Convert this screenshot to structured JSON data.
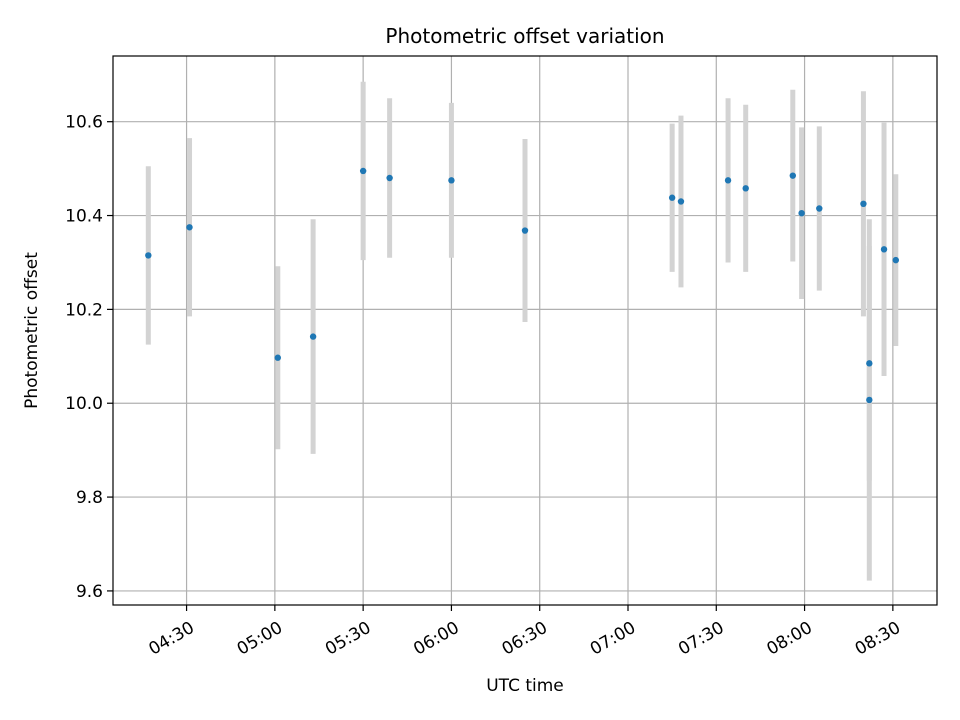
{
  "chart_data": {
    "type": "scatter",
    "title": "Photometric offset variation",
    "xlabel": "UTC time",
    "ylabel": "Photometric offset",
    "x_unit": "HH:MM",
    "xlim": [
      "04:05",
      "08:45"
    ],
    "ylim": [
      9.57,
      10.74
    ],
    "x_ticks": [
      "04:30",
      "05:00",
      "05:30",
      "06:00",
      "06:30",
      "07:00",
      "07:30",
      "08:00",
      "08:30"
    ],
    "y_ticks": [
      "9.6",
      "9.8",
      "10.0",
      "10.2",
      "10.4",
      "10.6"
    ],
    "y_tick_values": [
      9.6,
      9.8,
      10.0,
      10.2,
      10.4,
      10.6
    ],
    "grid": true,
    "series": [
      {
        "points": [
          {
            "x": "04:17",
            "y": 10.315,
            "err": 0.19
          },
          {
            "x": "04:31",
            "y": 10.375,
            "err": 0.19
          },
          {
            "x": "05:01",
            "y": 10.097,
            "err": 0.195
          },
          {
            "x": "05:13",
            "y": 10.142,
            "err": 0.25
          },
          {
            "x": "05:30",
            "y": 10.495,
            "err": 0.19
          },
          {
            "x": "05:39",
            "y": 10.48,
            "err": 0.17
          },
          {
            "x": "05:60",
            "y": 10.475,
            "err": 0.165
          },
          {
            "x": "06:25",
            "y": 10.368,
            "err": 0.195
          },
          {
            "x": "07:15",
            "y": 10.438,
            "err": 0.158
          },
          {
            "x": "07:18",
            "y": 10.43,
            "err": 0.183
          },
          {
            "x": "07:34",
            "y": 10.475,
            "err": 0.175
          },
          {
            "x": "07:40",
            "y": 10.458,
            "err": 0.178
          },
          {
            "x": "07:56",
            "y": 10.485,
            "err": 0.183
          },
          {
            "x": "07:59",
            "y": 10.405,
            "err": 0.183
          },
          {
            "x": "08:05",
            "y": 10.415,
            "err": 0.175
          },
          {
            "x": "08:20",
            "y": 10.425,
            "err": 0.24
          },
          {
            "x": "08:22",
            "y": 10.085,
            "err": 0.25
          },
          {
            "x": "08:22",
            "y": 10.007,
            "err": 0.385
          },
          {
            "x": "08:27",
            "y": 10.328,
            "err": 0.27
          },
          {
            "x": "08:31",
            "y": 10.305,
            "err": 0.183
          }
        ]
      }
    ],
    "colors": {
      "marker": "#1f77b4",
      "errorbar": "#d3d3d3",
      "grid": "#b0b0b0",
      "axes": "#000000"
    }
  }
}
